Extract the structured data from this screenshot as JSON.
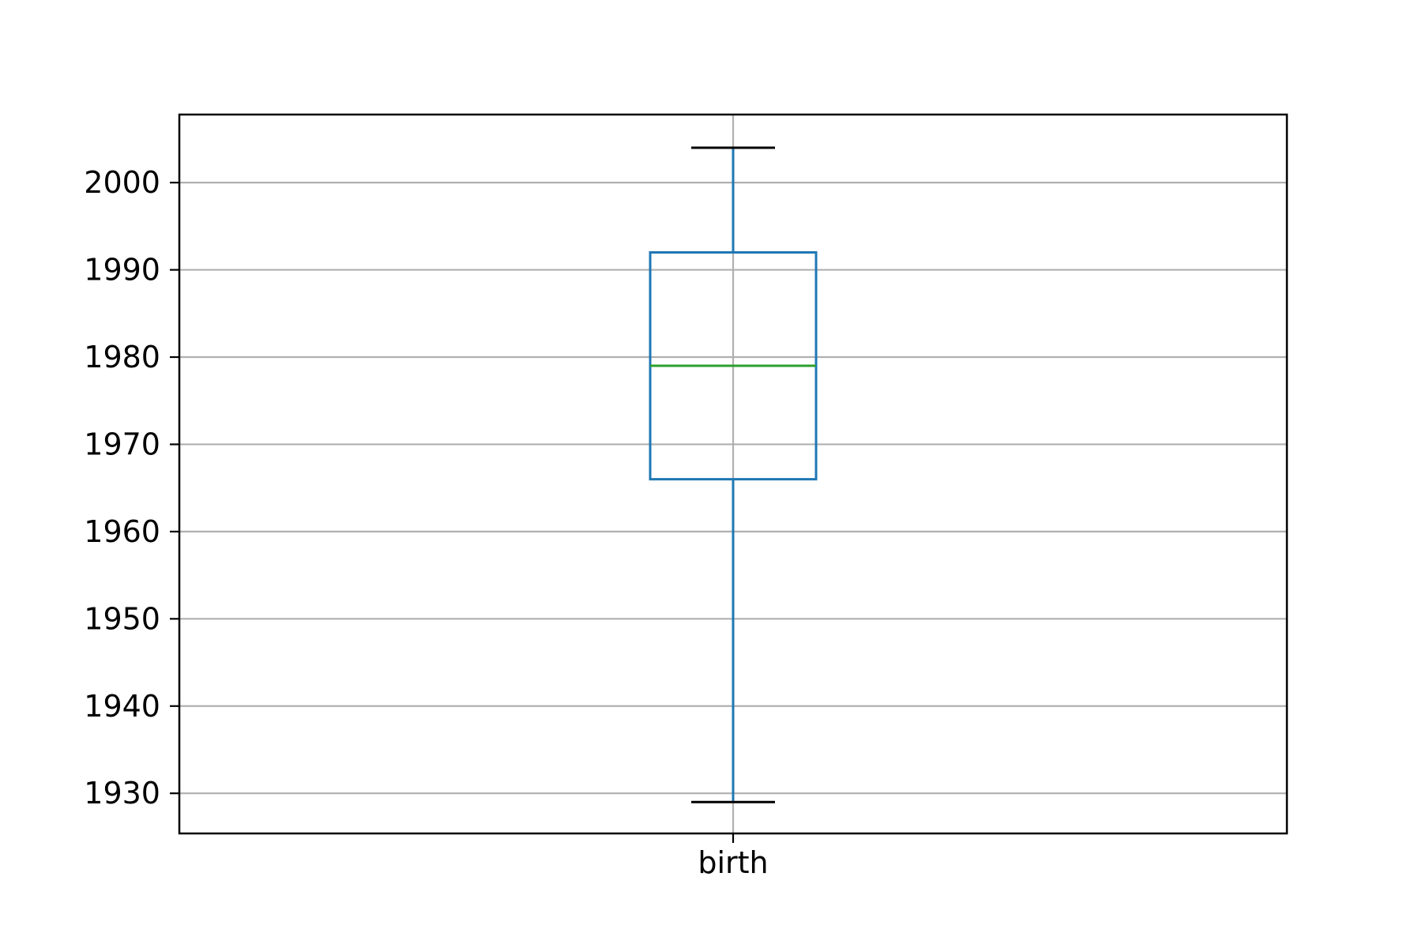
{
  "chart_data": {
    "type": "box",
    "categories": [
      "birth"
    ],
    "ylim": [
      1925.4,
      2007.8
    ],
    "yticks": [
      1930,
      1940,
      1950,
      1960,
      1970,
      1980,
      1990,
      2000
    ],
    "grid": true,
    "boxes": [
      {
        "category": "birth",
        "whisker_low": 1929,
        "q1": 1966,
        "median": 1979,
        "q3": 1992,
        "whisker_high": 2004
      }
    ],
    "colors": {
      "box": "#1f77b4",
      "median": "#2ca02c",
      "cap": "#000000",
      "grid": "#b0b0b0",
      "axes": "#000000"
    }
  }
}
